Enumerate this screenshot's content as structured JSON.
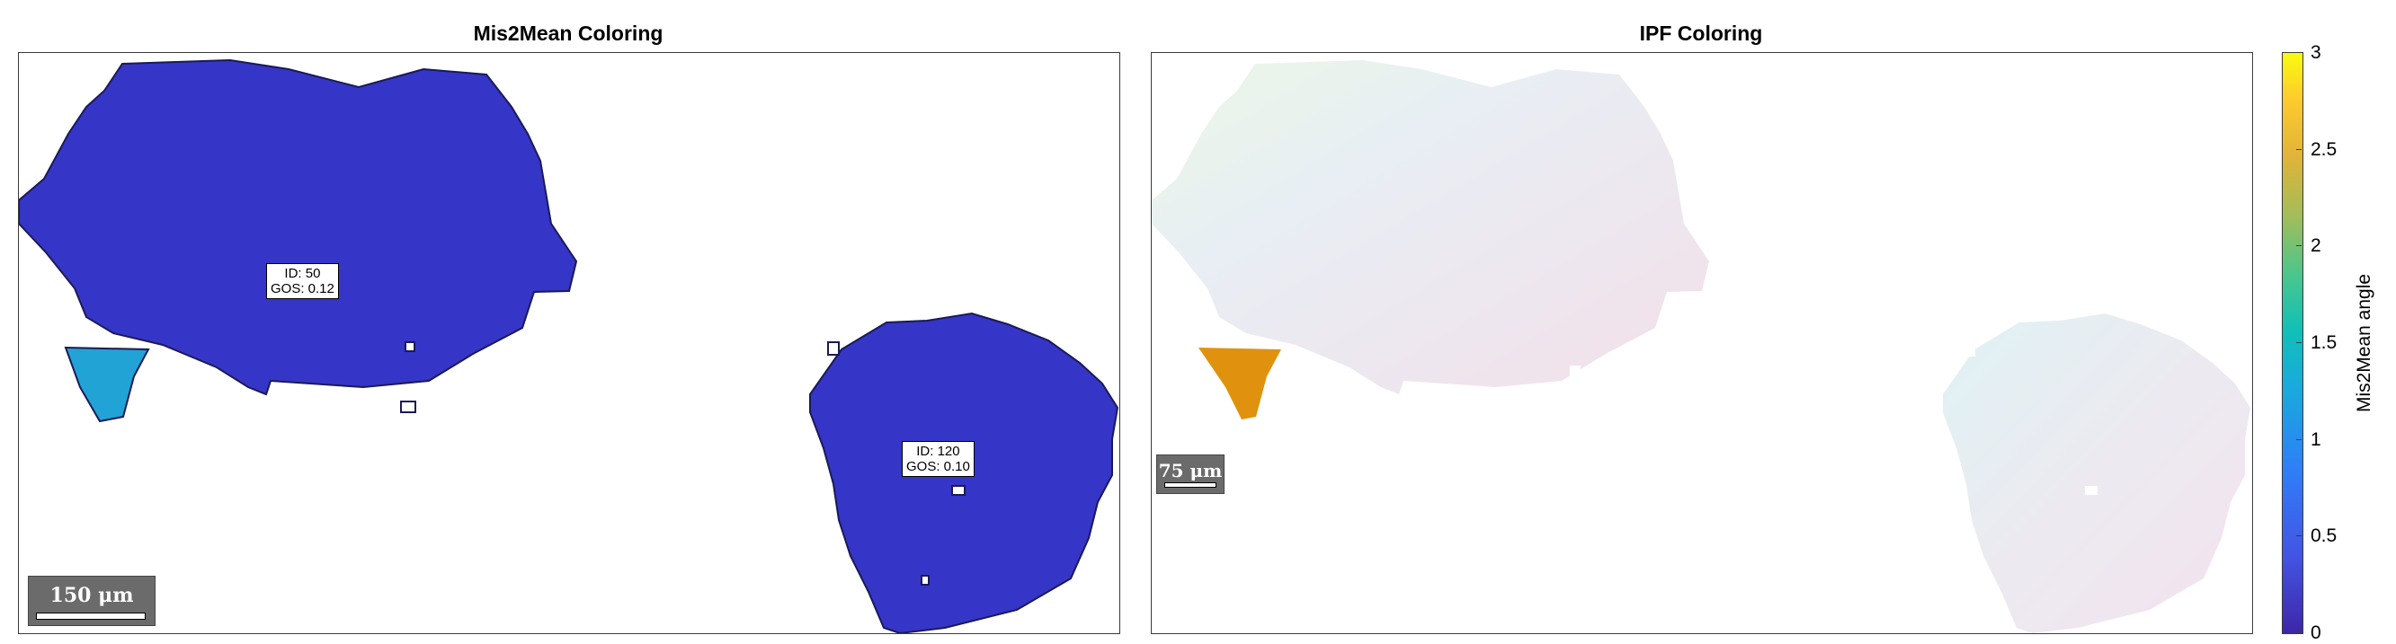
{
  "panels": {
    "left": {
      "title": "Mis2Mean Coloring"
    },
    "right": {
      "title": "IPF Coloring"
    }
  },
  "grain_labels": [
    {
      "id_text": "ID: 50",
      "gos_text": "GOS: 0.12"
    },
    {
      "id_text": "ID: 120",
      "gos_text": "GOS: 0.10"
    }
  ],
  "scalebars": {
    "left": "150 μm",
    "right": "75 μm"
  },
  "colorbar": {
    "label": "Mis2Mean angle",
    "ticks": [
      "0",
      "0.5",
      "1",
      "1.5",
      "2",
      "2.5",
      "3"
    ],
    "range": [
      0,
      3
    ],
    "colormap": "parula"
  },
  "chart_data": {
    "type": "heatmap",
    "title": "Mis2Mean Coloring",
    "colorbar_label": "Mis2Mean angle",
    "colorbar_range": [
      0,
      3
    ],
    "grains": [
      {
        "id": 50,
        "gos": 0.12
      },
      {
        "id": 120,
        "gos": 0.1
      }
    ],
    "colors": {
      "grain_fill": "#3535c8",
      "subgrain_fill": "#21a3d6",
      "ipf_subgrain": "#e0920e"
    }
  }
}
